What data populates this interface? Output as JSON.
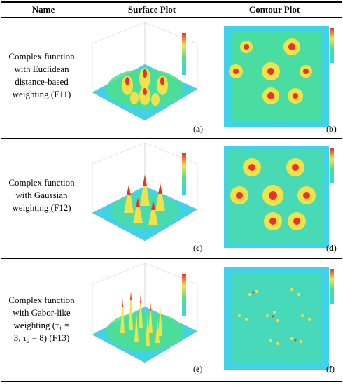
{
  "header": {
    "col_name": "Name",
    "col_surface": "Surface Plot",
    "col_contour": "Contour Plot"
  },
  "rows": [
    {
      "name_lines": [
        "Complex function",
        "with Euclidean",
        "distance-based",
        "weighting (F11)"
      ],
      "surface_label": "a",
      "contour_label": "b"
    },
    {
      "name_lines": [
        "Complex function",
        "with Gaussian",
        "weighting (F12)"
      ],
      "surface_label": "c",
      "contour_label": "d"
    },
    {
      "name_lines": [
        "Complex function",
        "with Gabor-like",
        "weighting (τ₁ =",
        "3, τ₂ = 8) (F13)"
      ],
      "surface_label": "e",
      "contour_label": "f"
    }
  ],
  "colors": {
    "background_field": "#3fd2e8",
    "mid": "#4fe08a",
    "peak_yellow": "#f2e24a",
    "peak_red": "#e8322a"
  }
}
